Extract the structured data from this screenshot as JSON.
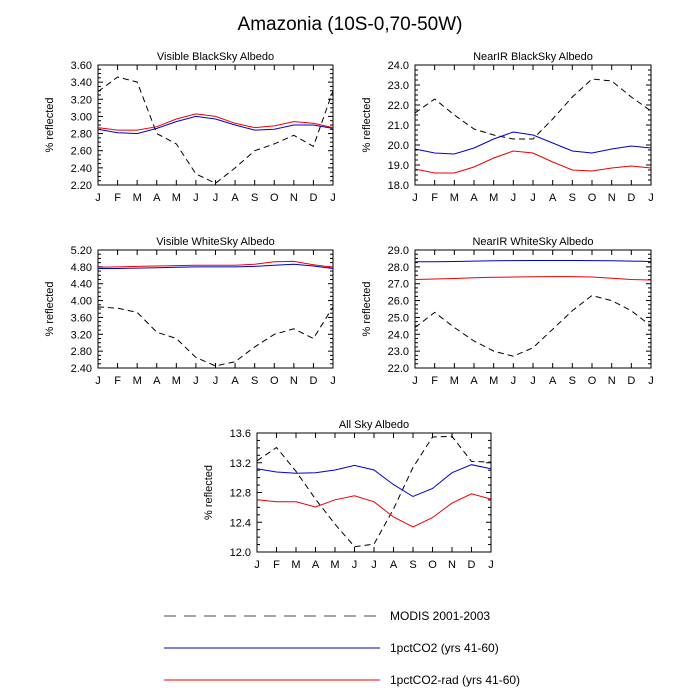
{
  "figure": {
    "title": "Amazonia (10S-0,70-50W)"
  },
  "colors": {
    "modis": "#000000",
    "ctl": "#0000cc",
    "rad": "#ee0000",
    "legend_modis": "#888888"
  },
  "legend": [
    {
      "key": "modis",
      "label": "MODIS 2001-2003",
      "dash": true
    },
    {
      "key": "ctl",
      "label": "1pctCO2 (yrs 41-60)",
      "dash": false
    },
    {
      "key": "rad",
      "label": "1pctCO2-rad (yrs 41-60)",
      "dash": false
    }
  ],
  "chart_data": [
    {
      "type": "line",
      "title": "Visible BlackSky Albedo",
      "ylabel": "% reflected",
      "x": [
        "J",
        "F",
        "M",
        "A",
        "M",
        "J",
        "J",
        "A",
        "S",
        "O",
        "N",
        "D",
        "J"
      ],
      "ylim": [
        2.2,
        3.6
      ],
      "yticks": [
        "2.20",
        "2.40",
        "2.60",
        "2.80",
        "3.00",
        "3.20",
        "3.40",
        "3.60"
      ],
      "series": [
        {
          "name": "MODIS 2001-2003",
          "key": "modis",
          "values": [
            3.29,
            3.46,
            3.4,
            2.8,
            2.68,
            2.33,
            2.22,
            2.4,
            2.6,
            2.68,
            2.78,
            2.65,
            3.3
          ]
        },
        {
          "name": "1pctCO2 (yrs 41-60)",
          "key": "ctl",
          "values": [
            2.85,
            2.81,
            2.8,
            2.86,
            2.94,
            3.0,
            2.97,
            2.9,
            2.84,
            2.85,
            2.9,
            2.9,
            2.86
          ]
        },
        {
          "name": "1pctCO2-rad (yrs 41-60)",
          "key": "rad",
          "values": [
            2.87,
            2.84,
            2.84,
            2.88,
            2.97,
            3.03,
            3.0,
            2.92,
            2.87,
            2.89,
            2.94,
            2.92,
            2.87
          ]
        }
      ]
    },
    {
      "type": "line",
      "title": "NearIR BlackSky Albedo",
      "ylabel": "% reflected",
      "x": [
        "J",
        "F",
        "M",
        "A",
        "M",
        "J",
        "J",
        "A",
        "S",
        "O",
        "N",
        "D",
        "J"
      ],
      "ylim": [
        18.0,
        24.0
      ],
      "yticks": [
        "18.0",
        "19.0",
        "20.0",
        "21.0",
        "22.0",
        "23.0",
        "24.0"
      ],
      "series": [
        {
          "name": "MODIS 2001-2003",
          "key": "modis",
          "values": [
            21.6,
            22.3,
            21.5,
            20.8,
            20.5,
            20.3,
            20.3,
            21.3,
            22.4,
            23.3,
            23.2,
            22.4,
            21.7
          ]
        },
        {
          "name": "1pctCO2 (yrs 41-60)",
          "key": "ctl",
          "values": [
            19.8,
            19.6,
            19.55,
            19.85,
            20.3,
            20.65,
            20.5,
            20.1,
            19.7,
            19.6,
            19.8,
            19.95,
            19.85
          ]
        },
        {
          "name": "1pctCO2-rad (yrs 41-60)",
          "key": "rad",
          "values": [
            18.8,
            18.6,
            18.6,
            18.9,
            19.35,
            19.7,
            19.6,
            19.15,
            18.75,
            18.7,
            18.85,
            18.95,
            18.85
          ]
        }
      ]
    },
    {
      "type": "line",
      "title": "Visible WhiteSky Albedo",
      "ylabel": "% reflected",
      "x": [
        "J",
        "F",
        "M",
        "A",
        "M",
        "J",
        "J",
        "A",
        "S",
        "O",
        "N",
        "D",
        "J"
      ],
      "ylim": [
        2.4,
        5.2
      ],
      "yticks": [
        "2.40",
        "2.80",
        "3.20",
        "3.60",
        "4.00",
        "4.40",
        "4.80",
        "5.20"
      ],
      "series": [
        {
          "name": "MODIS 2001-2003",
          "key": "modis",
          "values": [
            3.85,
            3.82,
            3.72,
            3.25,
            3.1,
            2.65,
            2.45,
            2.55,
            2.9,
            3.2,
            3.33,
            3.1,
            3.85
          ]
        },
        {
          "name": "1pctCO2 (yrs 41-60)",
          "key": "ctl",
          "values": [
            4.76,
            4.76,
            4.77,
            4.78,
            4.79,
            4.8,
            4.8,
            4.8,
            4.81,
            4.84,
            4.86,
            4.82,
            4.76
          ]
        },
        {
          "name": "1pctCO2-rad (yrs 41-60)",
          "key": "rad",
          "values": [
            4.79,
            4.8,
            4.81,
            4.82,
            4.83,
            4.84,
            4.84,
            4.84,
            4.86,
            4.92,
            4.93,
            4.85,
            4.79
          ]
        }
      ]
    },
    {
      "type": "line",
      "title": "NearIR WhiteSky Albedo",
      "ylabel": "% reflected",
      "x": [
        "J",
        "F",
        "M",
        "A",
        "M",
        "J",
        "J",
        "A",
        "S",
        "O",
        "N",
        "D",
        "J"
      ],
      "ylim": [
        22.0,
        29.0
      ],
      "yticks": [
        "22.0",
        "23.0",
        "24.0",
        "25.0",
        "26.0",
        "27.0",
        "28.0",
        "29.0"
      ],
      "series": [
        {
          "name": "MODIS 2001-2003",
          "key": "modis",
          "values": [
            24.4,
            25.3,
            24.4,
            23.6,
            23.0,
            22.7,
            23.2,
            24.3,
            25.4,
            26.3,
            26.0,
            25.4,
            24.5
          ]
        },
        {
          "name": "1pctCO2 (yrs 41-60)",
          "key": "ctl",
          "values": [
            28.3,
            28.3,
            28.32,
            28.34,
            28.36,
            28.37,
            28.38,
            28.38,
            28.38,
            28.37,
            28.36,
            28.34,
            28.32
          ]
        },
        {
          "name": "1pctCO2-rad (yrs 41-60)",
          "key": "rad",
          "values": [
            27.25,
            27.28,
            27.31,
            27.35,
            27.38,
            27.4,
            27.41,
            27.42,
            27.42,
            27.4,
            27.33,
            27.25,
            27.22
          ]
        }
      ]
    },
    {
      "type": "line",
      "title": "All Sky Albedo",
      "ylabel": "% reflected",
      "x": [
        "J",
        "F",
        "M",
        "A",
        "M",
        "J",
        "J",
        "A",
        "S",
        "O",
        "N",
        "D",
        "J"
      ],
      "ylim": [
        12.0,
        13.8
      ],
      "yticks": [
        "12.0",
        "12.4",
        "12.8",
        "13.2",
        "13.6"
      ],
      "series": [
        {
          "name": "MODIS 2001-2003",
          "key": "modis",
          "values": [
            13.38,
            13.58,
            13.22,
            12.8,
            12.42,
            12.08,
            12.12,
            12.65,
            13.28,
            13.74,
            13.75,
            13.37,
            13.36
          ]
        },
        {
          "name": "1pctCO2 (yrs 41-60)",
          "key": "ctl",
          "values": [
            13.26,
            13.21,
            13.19,
            13.2,
            13.24,
            13.31,
            13.24,
            13.02,
            12.84,
            12.96,
            13.2,
            13.32,
            13.26
          ]
        },
        {
          "name": "1pctCO2-rad (yrs 41-60)",
          "key": "rad",
          "values": [
            12.79,
            12.76,
            12.76,
            12.68,
            12.79,
            12.85,
            12.76,
            12.53,
            12.38,
            12.52,
            12.74,
            12.88,
            12.8
          ]
        }
      ]
    }
  ]
}
